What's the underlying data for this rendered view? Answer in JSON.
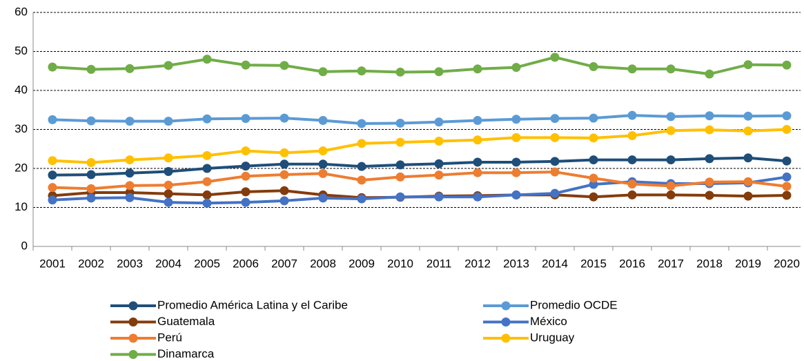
{
  "chart_data": {
    "type": "line",
    "categories": [
      "2001",
      "2002",
      "2003",
      "2004",
      "2005",
      "2006",
      "2007",
      "2008",
      "2009",
      "2010",
      "2011",
      "2012",
      "2013",
      "2014",
      "2015",
      "2016",
      "2017",
      "2018",
      "2019",
      "2020"
    ],
    "ylim": [
      0,
      60
    ],
    "yticks": [
      0,
      10,
      20,
      30,
      40,
      50,
      60
    ],
    "grid": true,
    "legend": "bottom",
    "series": [
      {
        "name": "Promedio América Latina y el Caribe",
        "color": "#1f4e79",
        "values": [
          18.3,
          18.4,
          18.8,
          19.2,
          20.0,
          20.6,
          21.1,
          21.1,
          20.5,
          20.9,
          21.2,
          21.6,
          21.6,
          21.8,
          22.2,
          22.2,
          22.2,
          22.5,
          22.7,
          21.9
        ]
      },
      {
        "name": "Promedio OCDE",
        "color": "#5b9bd5",
        "values": [
          32.5,
          32.2,
          32.1,
          32.1,
          32.7,
          32.8,
          32.9,
          32.3,
          31.5,
          31.6,
          31.9,
          32.3,
          32.6,
          32.8,
          32.9,
          33.6,
          33.3,
          33.5,
          33.4,
          33.5
        ]
      },
      {
        "name": "Guatemala",
        "color": "#843c0c",
        "values": [
          13.0,
          13.8,
          13.8,
          13.5,
          13.2,
          14.0,
          14.3,
          13.2,
          12.5,
          12.6,
          12.9,
          13.0,
          13.2,
          13.2,
          12.7,
          13.2,
          13.2,
          13.1,
          12.9,
          13.1
        ]
      },
      {
        "name": "México",
        "color": "#4472c4",
        "values": [
          11.9,
          12.4,
          12.5,
          11.3,
          11.1,
          11.3,
          11.7,
          12.4,
          12.2,
          12.7,
          12.7,
          12.7,
          13.2,
          13.6,
          15.9,
          16.6,
          16.1,
          16.1,
          16.3,
          17.8
        ]
      },
      {
        "name": "Perú",
        "color": "#ed7d31",
        "values": [
          15.1,
          14.8,
          15.6,
          15.7,
          16.6,
          18.0,
          18.4,
          18.7,
          17.0,
          17.8,
          18.3,
          18.9,
          18.9,
          19.1,
          17.5,
          16.0,
          15.5,
          16.5,
          16.6,
          15.4
        ]
      },
      {
        "name": "Uruguay",
        "color": "#ffc000",
        "values": [
          22.0,
          21.5,
          22.2,
          22.7,
          23.3,
          24.5,
          24.0,
          24.5,
          26.4,
          26.7,
          27.0,
          27.3,
          27.9,
          27.9,
          27.8,
          28.4,
          29.7,
          29.9,
          29.6,
          30.0
        ]
      },
      {
        "name": "Dinamarca",
        "color": "#70ad47",
        "values": [
          46.0,
          45.4,
          45.6,
          46.4,
          48.0,
          46.5,
          46.4,
          44.8,
          45.0,
          44.7,
          44.8,
          45.5,
          45.9,
          48.5,
          46.1,
          45.5,
          45.5,
          44.2,
          46.6,
          46.5
        ]
      }
    ]
  }
}
